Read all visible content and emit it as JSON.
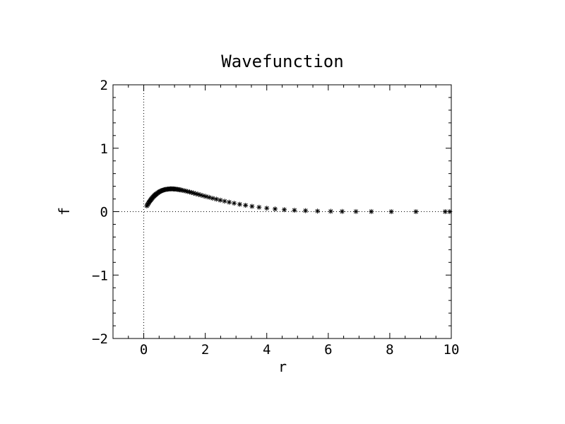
{
  "chart_data": {
    "type": "scatter",
    "title": "Wavefunction",
    "xlabel": "r",
    "ylabel": "f",
    "xlim": [
      -1,
      10
    ],
    "ylim": [
      -2,
      2
    ],
    "x_ticks": [
      0,
      2,
      4,
      6,
      8,
      10
    ],
    "x_tick_labels": [
      "0",
      "2",
      "4",
      "6",
      "8",
      "10"
    ],
    "y_ticks": [
      -2,
      -1,
      0,
      1,
      2
    ],
    "y_tick_labels": [
      "−2",
      "−1",
      "0",
      "1",
      "2"
    ],
    "reference_lines": {
      "x": 0,
      "y": 0,
      "style": "dotted"
    },
    "grid": false,
    "legend": false,
    "marker": "asterisk",
    "marker_color": "#000000",
    "series": [
      {
        "x": [
          0.1,
          0.12,
          0.14,
          0.16,
          0.18,
          0.2,
          0.22,
          0.24,
          0.26,
          0.28,
          0.3,
          0.32,
          0.34,
          0.36,
          0.38,
          0.4,
          0.42,
          0.45,
          0.48,
          0.51,
          0.54,
          0.57,
          0.6,
          0.63,
          0.66,
          0.69,
          0.72,
          0.75,
          0.78,
          0.81,
          0.84,
          0.87,
          0.9,
          0.93,
          0.96,
          0.99,
          1.02,
          1.06,
          1.1,
          1.14,
          1.18,
          1.22,
          1.27,
          1.32,
          1.37,
          1.43,
          1.49,
          1.55,
          1.62,
          1.69,
          1.77,
          1.85,
          1.94,
          2.03,
          2.13,
          2.24,
          2.36,
          2.49,
          2.63,
          2.78,
          2.94,
          3.12,
          3.31,
          3.52,
          3.75,
          4.0,
          4.27,
          4.57,
          4.9,
          5.26,
          5.65,
          6.08,
          6.45,
          6.9,
          7.4,
          8.05,
          8.85,
          9.8,
          9.95
        ],
        "y": [
          0.09,
          0.107,
          0.123,
          0.139,
          0.154,
          0.168,
          0.181,
          0.194,
          0.206,
          0.218,
          0.229,
          0.239,
          0.249,
          0.258,
          0.267,
          0.275,
          0.283,
          0.294,
          0.304,
          0.313,
          0.321,
          0.328,
          0.334,
          0.339,
          0.344,
          0.348,
          0.351,
          0.353,
          0.355,
          0.357,
          0.358,
          0.359,
          0.359,
          0.359,
          0.358,
          0.357,
          0.356,
          0.354,
          0.351,
          0.348,
          0.344,
          0.34,
          0.335,
          0.33,
          0.324,
          0.317,
          0.31,
          0.302,
          0.293,
          0.283,
          0.273,
          0.262,
          0.25,
          0.238,
          0.225,
          0.211,
          0.196,
          0.181,
          0.165,
          0.149,
          0.133,
          0.116,
          0.1,
          0.084,
          0.069,
          0.055,
          0.042,
          0.031,
          0.022,
          0.015,
          0.009,
          0.005,
          0.003,
          0.002,
          0.001,
          0.0,
          0.0,
          0.0,
          0.0
        ]
      }
    ]
  }
}
